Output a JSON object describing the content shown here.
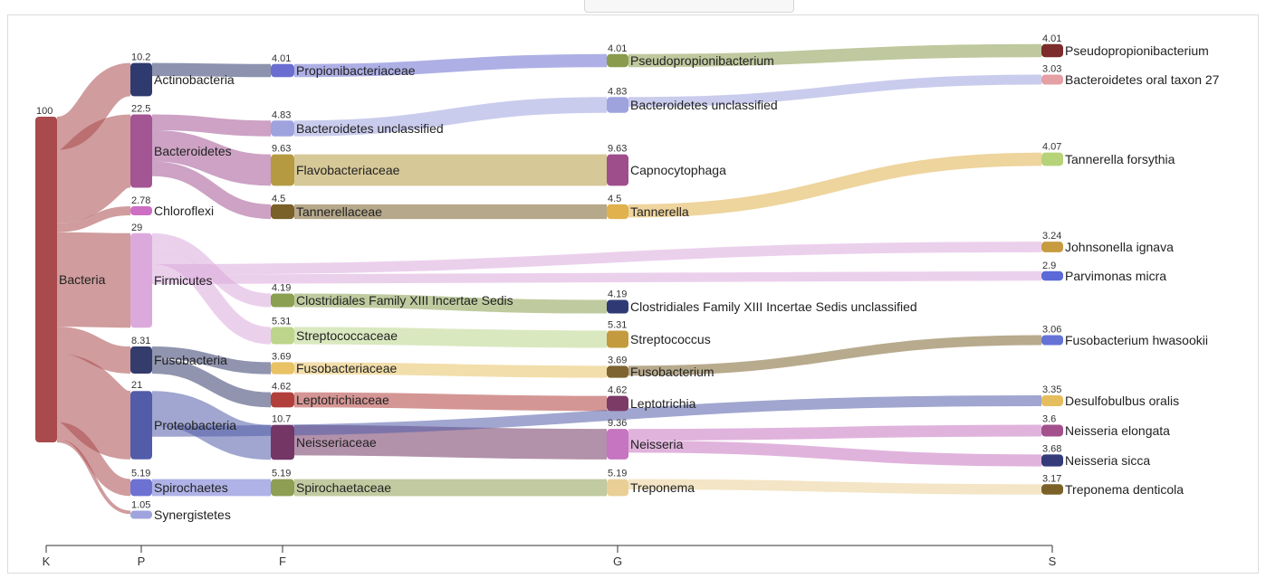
{
  "chart_data": {
    "type": "sankey",
    "axis": {
      "ranks": [
        "K",
        "P",
        "F",
        "G",
        "S"
      ]
    },
    "nodes": [
      {
        "id": "bacteria",
        "rank": "K",
        "label": "Bacteria",
        "value": 100,
        "value_label": "100",
        "color": "#a94a4c"
      },
      {
        "id": "actinobacteria",
        "rank": "P",
        "label": "Actinobacteria",
        "value": 10.2,
        "value_label": "10.2",
        "color": "#2f3a6e"
      },
      {
        "id": "bacteroidetes",
        "rank": "P",
        "label": "Bacteroidetes",
        "value": 22.5,
        "value_label": "22.5",
        "color": "#a45593"
      },
      {
        "id": "chloroflexi",
        "rank": "P",
        "label": "Chloroflexi",
        "value": 2.78,
        "value_label": "2.78",
        "color": "#cd6ec4"
      },
      {
        "id": "firmicutes",
        "rank": "P",
        "label": "Firmicutes",
        "value": 29,
        "value_label": "29",
        "color": "#dba9dc"
      },
      {
        "id": "fusobacteria",
        "rank": "P",
        "label": "Fusobacteria",
        "value": 8.31,
        "value_label": "8.31",
        "color": "#343c6c"
      },
      {
        "id": "proteobacteria",
        "rank": "P",
        "label": "Proteobacteria",
        "value": 21,
        "value_label": "21",
        "color": "#525ca8"
      },
      {
        "id": "spirochaetes",
        "rank": "P",
        "label": "Spirochaetes",
        "value": 5.19,
        "value_label": "5.19",
        "color": "#6d72d2"
      },
      {
        "id": "synergistetes",
        "rank": "P",
        "label": "Synergistetes",
        "value": 1.05,
        "value_label": "1.05",
        "color": "#9fa4de"
      },
      {
        "id": "propionibacteriaceae",
        "rank": "F",
        "label": "Propionibacteriaceae",
        "value": 4.01,
        "value_label": "4.01",
        "color": "#6b6ed0"
      },
      {
        "id": "bacteroidetes_unclassified_f",
        "rank": "F",
        "label": "Bacteroidetes unclassified",
        "value": 4.83,
        "value_label": "4.83",
        "color": "#9ea3de"
      },
      {
        "id": "flavobacteriaceae",
        "rank": "F",
        "label": "Flavobacteriaceae",
        "value": 9.63,
        "value_label": "9.63",
        "color": "#b59a42"
      },
      {
        "id": "tannerellaceae",
        "rank": "F",
        "label": "Tannerellaceae",
        "value": 4.5,
        "value_label": "4.5",
        "color": "#7a6129"
      },
      {
        "id": "clostridiales_f",
        "rank": "F",
        "label": "Clostridiales Family XIII Incertae Sedis",
        "value": 4.19,
        "value_label": "4.19",
        "color": "#8ba050"
      },
      {
        "id": "streptococcaceae",
        "rank": "F",
        "label": "Streptococcaceae",
        "value": 5.31,
        "value_label": "5.31",
        "color": "#bcd58a"
      },
      {
        "id": "fusobacteriaceae",
        "rank": "F",
        "label": "Fusobacteriaceae",
        "value": 3.69,
        "value_label": "3.69",
        "color": "#e8c264"
      },
      {
        "id": "leptotrichiaceae",
        "rank": "F",
        "label": "Leptotrichiaceae",
        "value": 4.62,
        "value_label": "4.62",
        "color": "#b1403c"
      },
      {
        "id": "neisseriaceae",
        "rank": "F",
        "label": "Neisseriaceae",
        "value": 10.7,
        "value_label": "10.7",
        "color": "#733665"
      },
      {
        "id": "spirochaetaceae",
        "rank": "F",
        "label": "Spirochaetaceae",
        "value": 5.19,
        "value_label": "5.19",
        "color": "#8e9e52"
      },
      {
        "id": "pseudopropionibacterium_g",
        "rank": "G",
        "label": "Pseudopropionibacterium",
        "value": 4.01,
        "value_label": "4.01",
        "color": "#8a9b4e"
      },
      {
        "id": "bacteroidetes_unclassified_g",
        "rank": "G",
        "label": "Bacteroidetes unclassified",
        "value": 4.83,
        "value_label": "4.83",
        "color": "#9ea3de"
      },
      {
        "id": "capnocytophaga",
        "rank": "G",
        "label": "Capnocytophaga",
        "value": 9.63,
        "value_label": "9.63",
        "color": "#9f4e8c"
      },
      {
        "id": "tannerella",
        "rank": "G",
        "label": "Tannerella",
        "value": 4.5,
        "value_label": "4.5",
        "color": "#e0b14c"
      },
      {
        "id": "clostridiales_g",
        "rank": "G",
        "label": "Clostridiales Family XIII Incertae Sedis unclassified",
        "value": 4.19,
        "value_label": "4.19",
        "color": "#2f3a75"
      },
      {
        "id": "streptococcus",
        "rank": "G",
        "label": "Streptococcus",
        "value": 5.31,
        "value_label": "5.31",
        "color": "#c49a3e"
      },
      {
        "id": "fusobacterium",
        "rank": "G",
        "label": "Fusobacterium",
        "value": 3.69,
        "value_label": "3.69",
        "color": "#7d6430"
      },
      {
        "id": "leptotrichia",
        "rank": "G",
        "label": "Leptotrichia",
        "value": 4.62,
        "value_label": "4.62",
        "color": "#7c3a66"
      },
      {
        "id": "neisseria",
        "rank": "G",
        "label": "Neisseria",
        "value": 9.36,
        "value_label": "9.36",
        "color": "#c675c0"
      },
      {
        "id": "treponema",
        "rank": "G",
        "label": "Treponema",
        "value": 5.19,
        "value_label": "5.19",
        "color": "#e9cf95"
      },
      {
        "id": "pseudopropionibacterium_s",
        "rank": "S",
        "label": "Pseudopropionibacterium",
        "value": 4.01,
        "value_label": "4.01",
        "color": "#7c2c2c"
      },
      {
        "id": "bacteroidetes_oral_taxon",
        "rank": "S",
        "label": "Bacteroidetes oral taxon 27",
        "value": 3.03,
        "value_label": "3.03",
        "color": "#e4a0a4"
      },
      {
        "id": "tannerella_forsythia",
        "rank": "S",
        "label": "Tannerella forsythia",
        "value": 4.07,
        "value_label": "4.07",
        "color": "#b7d37a"
      },
      {
        "id": "johnsonella_ignava",
        "rank": "S",
        "label": "Johnsonella ignava",
        "value": 3.24,
        "value_label": "3.24",
        "color": "#c79c40"
      },
      {
        "id": "parvimonas_micra",
        "rank": "S",
        "label": "Parvimonas micra",
        "value": 2.9,
        "value_label": "2.9",
        "color": "#5b6ad8"
      },
      {
        "id": "fusobacterium_hwasookii",
        "rank": "S",
        "label": "Fusobacterium hwasookii",
        "value": 3.06,
        "value_label": "3.06",
        "color": "#6673d6"
      },
      {
        "id": "desulfobulbus_oralis",
        "rank": "S",
        "label": "Desulfobulbus oralis",
        "value": 3.35,
        "value_label": "3.35",
        "color": "#e6bd5e"
      },
      {
        "id": "neisseria_elongata",
        "rank": "S",
        "label": "Neisseria elongata",
        "value": 3.6,
        "value_label": "3.6",
        "color": "#a3508d"
      },
      {
        "id": "neisseria_sicca",
        "rank": "S",
        "label": "Neisseria sicca",
        "value": 3.68,
        "value_label": "3.68",
        "color": "#343b78"
      },
      {
        "id": "treponema_denticola",
        "rank": "S",
        "label": "Treponema denticola",
        "value": 3.17,
        "value_label": "3.17",
        "color": "#7b6128"
      }
    ],
    "links": [
      {
        "source": "bacteria",
        "target": "actinobacteria",
        "value": 10.2
      },
      {
        "source": "bacteria",
        "target": "bacteroidetes",
        "value": 22.5
      },
      {
        "source": "bacteria",
        "target": "chloroflexi",
        "value": 2.78
      },
      {
        "source": "bacteria",
        "target": "firmicutes",
        "value": 29
      },
      {
        "source": "bacteria",
        "target": "fusobacteria",
        "value": 8.31
      },
      {
        "source": "bacteria",
        "target": "proteobacteria",
        "value": 21
      },
      {
        "source": "bacteria",
        "target": "spirochaetes",
        "value": 5.19
      },
      {
        "source": "bacteria",
        "target": "synergistetes",
        "value": 1.05
      },
      {
        "source": "actinobacteria",
        "target": "propionibacteriaceae",
        "value": 4.01
      },
      {
        "source": "bacteroidetes",
        "target": "bacteroidetes_unclassified_f",
        "value": 4.83
      },
      {
        "source": "bacteroidetes",
        "target": "flavobacteriaceae",
        "value": 9.63
      },
      {
        "source": "bacteroidetes",
        "target": "tannerellaceae",
        "value": 4.5
      },
      {
        "source": "firmicutes",
        "target": "clostridiales_f",
        "value": 4.19
      },
      {
        "source": "firmicutes",
        "target": "streptococcaceae",
        "value": 5.31
      },
      {
        "source": "fusobacteria",
        "target": "fusobacteriaceae",
        "value": 3.69
      },
      {
        "source": "fusobacteria",
        "target": "leptotrichiaceae",
        "value": 4.62
      },
      {
        "source": "proteobacteria",
        "target": "neisseriaceae",
        "value": 10.7
      },
      {
        "source": "spirochaetes",
        "target": "spirochaetaceae",
        "value": 5.19
      },
      {
        "source": "propionibacteriaceae",
        "target": "pseudopropionibacterium_g",
        "value": 4.01
      },
      {
        "source": "bacteroidetes_unclassified_f",
        "target": "bacteroidetes_unclassified_g",
        "value": 4.83
      },
      {
        "source": "flavobacteriaceae",
        "target": "capnocytophaga",
        "value": 9.63
      },
      {
        "source": "tannerellaceae",
        "target": "tannerella",
        "value": 4.5
      },
      {
        "source": "clostridiales_f",
        "target": "clostridiales_g",
        "value": 4.19
      },
      {
        "source": "streptococcaceae",
        "target": "streptococcus",
        "value": 5.31
      },
      {
        "source": "fusobacteriaceae",
        "target": "fusobacterium",
        "value": 3.69
      },
      {
        "source": "leptotrichiaceae",
        "target": "leptotrichia",
        "value": 4.62
      },
      {
        "source": "neisseriaceae",
        "target": "neisseria",
        "value": 9.36
      },
      {
        "source": "spirochaetaceae",
        "target": "treponema",
        "value": 5.19
      },
      {
        "source": "pseudopropionibacterium_g",
        "target": "pseudopropionibacterium_s",
        "value": 4.01
      },
      {
        "source": "bacteroidetes_unclassified_g",
        "target": "bacteroidetes_oral_taxon",
        "value": 3.03
      },
      {
        "source": "tannerella",
        "target": "tannerella_forsythia",
        "value": 4.07
      },
      {
        "source": "firmicutes",
        "target": "johnsonella_ignava",
        "value": 3.24
      },
      {
        "source": "firmicutes",
        "target": "parvimonas_micra",
        "value": 2.9
      },
      {
        "source": "fusobacterium",
        "target": "fusobacterium_hwasookii",
        "value": 3.06
      },
      {
        "source": "proteobacteria",
        "target": "desulfobulbus_oralis",
        "value": 3.35
      },
      {
        "source": "neisseria",
        "target": "neisseria_elongata",
        "value": 3.6
      },
      {
        "source": "neisseria",
        "target": "neisseria_sicca",
        "value": 3.68
      },
      {
        "source": "treponema",
        "target": "treponema_denticola",
        "value": 3.17
      }
    ]
  }
}
